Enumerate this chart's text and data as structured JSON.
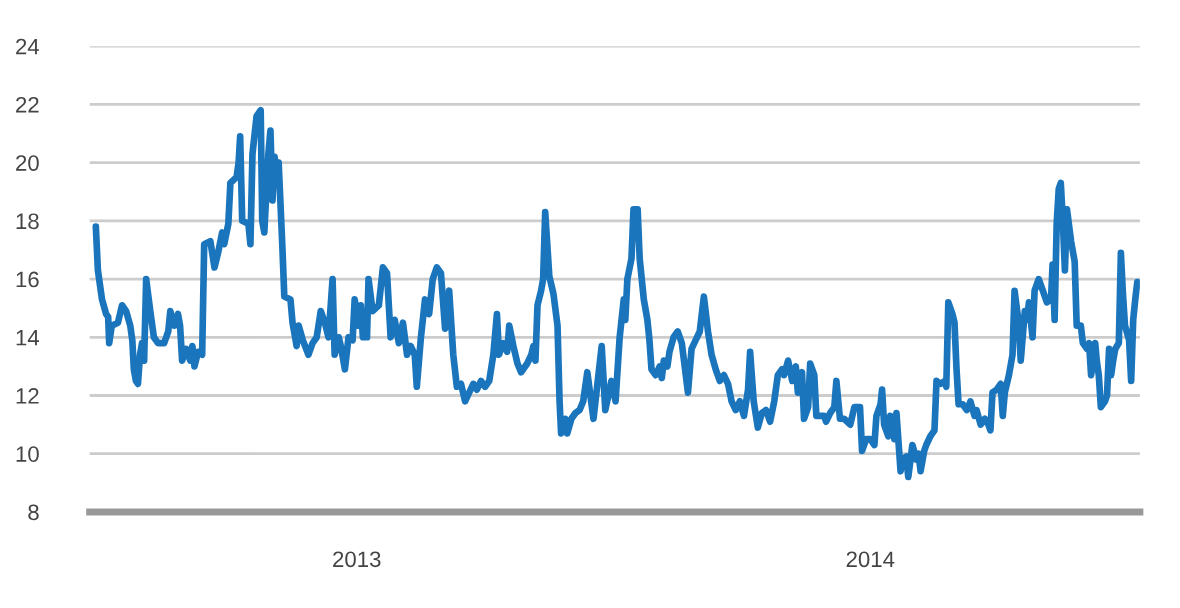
{
  "chart_data": {
    "type": "line",
    "xlim": [
      2012.98,
      2015.025
    ],
    "ylim": [
      8,
      24
    ],
    "yticks": [
      8,
      10,
      12,
      14,
      16,
      18,
      20,
      22,
      24
    ],
    "xticks": [
      {
        "value": 2013.5,
        "label": "2013"
      },
      {
        "value": 2014.5,
        "label": "2014"
      }
    ],
    "grid": "y",
    "marker": "none",
    "line_style": "solid",
    "series": [
      {
        "color": "#1a75bc",
        "x": [
          2012.992,
          2012.996,
          2013.004,
          2013.012,
          2013.016,
          2013.018,
          2013.023,
          2013.035,
          2013.043,
          2013.051,
          2013.059,
          2013.063,
          2013.066,
          2013.07,
          2013.074,
          2013.078,
          2013.082,
          2013.086,
          2013.09,
          2013.098,
          2013.105,
          2013.113,
          2013.125,
          2013.133,
          2013.137,
          2013.145,
          2013.152,
          2013.156,
          2013.16,
          2013.168,
          2013.176,
          2013.18,
          2013.184,
          2013.191,
          2013.199,
          2013.203,
          2013.215,
          2013.223,
          2013.23,
          2013.238,
          2013.242,
          2013.25,
          2013.254,
          2013.266,
          2013.27,
          2013.273,
          2013.277,
          2013.289,
          2013.293,
          2013.297,
          2013.305,
          2013.313,
          2013.316,
          2013.32,
          2013.328,
          2013.332,
          2013.336,
          2013.34,
          2013.344,
          2013.348,
          2013.355,
          2013.359,
          2013.371,
          2013.375,
          2013.383,
          2013.387,
          2013.395,
          2013.406,
          2013.414,
          2013.422,
          2013.43,
          2013.438,
          2013.445,
          2013.453,
          2013.457,
          2013.465,
          2013.469,
          2013.477,
          2013.484,
          2013.492,
          2013.496,
          2013.504,
          2013.508,
          2013.512,
          2013.52,
          2013.523,
          2013.531,
          2013.543,
          2013.551,
          2013.559,
          2013.566,
          2013.574,
          2013.582,
          2013.59,
          2013.598,
          2013.605,
          2013.613,
          2013.617,
          2013.625,
          2013.633,
          2013.641,
          2013.648,
          2013.656,
          2013.664,
          2013.672,
          2013.68,
          2013.688,
          2013.695,
          2013.703,
          2013.711,
          2013.719,
          2013.727,
          2013.734,
          2013.742,
          2013.75,
          2013.758,
          2013.766,
          2013.773,
          2013.777,
          2013.785,
          2013.793,
          2013.797,
          2013.805,
          2013.813,
          2013.82,
          2013.832,
          2013.84,
          2013.844,
          2013.848,
          2013.852,
          2013.859,
          2013.863,
          2013.867,
          2013.875,
          2013.883,
          2013.891,
          2013.895,
          2013.898,
          2013.906,
          2013.91,
          2013.918,
          2013.926,
          2013.934,
          2013.941,
          2013.949,
          2013.961,
          2013.977,
          2013.984,
          2013.996,
          2014.004,
          2014.012,
          2014.02,
          2014.023,
          2014.027,
          2014.035,
          2014.039,
          2014.047,
          2014.051,
          2014.059,
          2014.066,
          2014.07,
          2014.074,
          2014.082,
          2014.09,
          2014.094,
          2014.098,
          2014.105,
          2014.109,
          2014.117,
          2014.125,
          2014.133,
          2014.145,
          2014.152,
          2014.16,
          2014.168,
          2014.176,
          2014.184,
          2014.191,
          2014.199,
          2014.207,
          2014.215,
          2014.223,
          2014.23,
          2014.238,
          2014.246,
          2014.254,
          2014.262,
          2014.266,
          2014.273,
          2014.281,
          2014.289,
          2014.297,
          2014.305,
          2014.313,
          2014.32,
          2014.328,
          2014.332,
          2014.34,
          2014.348,
          2014.355,
          2014.359,
          2014.367,
          2014.371,
          2014.379,
          2014.383,
          2014.391,
          2014.395,
          2014.402,
          2014.41,
          2014.414,
          2014.422,
          2014.43,
          2014.434,
          2014.441,
          2014.449,
          2014.461,
          2014.469,
          2014.48,
          2014.484,
          2014.492,
          2014.5,
          2014.508,
          2014.512,
          2014.52,
          2014.523,
          2014.527,
          2014.535,
          2014.539,
          2014.547,
          2014.551,
          2014.559,
          2014.563,
          2014.57,
          2014.574,
          2014.582,
          2014.59,
          2014.594,
          2014.598,
          2014.605,
          2014.609,
          2014.617,
          2014.625,
          2014.629,
          2014.637,
          2014.645,
          2014.648,
          2014.652,
          2014.66,
          2014.664,
          2014.668,
          2014.672,
          2014.68,
          2014.688,
          2014.691,
          2014.695,
          2014.703,
          2014.707,
          2014.715,
          2014.723,
          2014.73,
          2014.734,
          2014.738,
          2014.746,
          2014.754,
          2014.758,
          2014.762,
          2014.77,
          2014.777,
          2014.781,
          2014.789,
          2014.793,
          2014.801,
          2014.805,
          2014.809,
          2014.816,
          2014.82,
          2014.828,
          2014.836,
          2014.844,
          2014.852,
          2014.855,
          2014.859,
          2014.863,
          2014.867,
          2014.871,
          2014.875,
          2014.879,
          2014.883,
          2014.891,
          2014.898,
          2014.902,
          2014.91,
          2014.914,
          2014.922,
          2014.926,
          2014.93,
          2014.934,
          2014.938,
          2014.941,
          2014.945,
          2014.949,
          2014.957,
          2014.961,
          2014.965,
          2014.969,
          2014.973,
          2014.977,
          2014.984,
          2014.988,
          2014.992,
          2014.996,
          2015.004,
          2015.008,
          2015.012,
          2015.016,
          2015.02
        ],
        "values": [
          17.8,
          16.3,
          15.3,
          14.8,
          14.7,
          13.8,
          14.4,
          14.5,
          15.1,
          14.9,
          14.4,
          13.9,
          12.9,
          12.5,
          12.4,
          13.4,
          13.8,
          13.2,
          16.0,
          14.9,
          14.0,
          13.8,
          13.8,
          14.2,
          14.9,
          14.4,
          14.8,
          14.4,
          13.2,
          13.6,
          13.2,
          13.7,
          13.0,
          13.5,
          13.4,
          17.2,
          17.3,
          16.4,
          16.9,
          17.6,
          17.2,
          17.9,
          19.3,
          19.5,
          20.0,
          20.9,
          18.0,
          17.9,
          17.2,
          20.3,
          21.6,
          21.8,
          18.0,
          17.6,
          20.3,
          21.1,
          18.7,
          20.2,
          19.5,
          20.0,
          17.2,
          15.4,
          15.3,
          14.5,
          13.7,
          14.4,
          13.9,
          13.4,
          13.8,
          14.0,
          14.9,
          14.5,
          14.0,
          16.0,
          13.4,
          14.0,
          13.7,
          12.9,
          14.0,
          13.9,
          15.3,
          14.4,
          15.1,
          14.0,
          14.0,
          16.0,
          14.9,
          15.1,
          16.4,
          16.2,
          14.0,
          14.6,
          13.8,
          14.5,
          13.4,
          13.7,
          13.4,
          12.3,
          14.0,
          15.3,
          14.8,
          16.0,
          16.4,
          16.2,
          14.3,
          15.6,
          13.4,
          12.3,
          12.4,
          11.8,
          12.1,
          12.4,
          12.2,
          12.5,
          12.3,
          12.5,
          13.4,
          14.8,
          13.4,
          13.8,
          13.5,
          14.4,
          13.7,
          13.1,
          12.8,
          13.1,
          13.4,
          13.7,
          13.2,
          15.1,
          15.6,
          16.0,
          18.3,
          16.1,
          15.5,
          14.4,
          11.8,
          10.7,
          11.2,
          10.7,
          11.2,
          11.4,
          11.5,
          11.8,
          12.8,
          11.2,
          13.7,
          11.5,
          12.5,
          11.8,
          14.0,
          15.3,
          14.6,
          16.0,
          16.7,
          18.4,
          18.4,
          16.7,
          15.3,
          14.6,
          13.9,
          12.9,
          12.7,
          13.0,
          12.6,
          13.2,
          13.0,
          13.5,
          14.0,
          14.2,
          13.8,
          12.1,
          13.6,
          13.9,
          14.2,
          15.4,
          14.2,
          13.4,
          12.9,
          12.5,
          12.7,
          12.4,
          11.8,
          11.5,
          11.8,
          11.3,
          12.2,
          13.5,
          11.8,
          10.9,
          11.4,
          11.5,
          11.1,
          11.8,
          12.7,
          12.9,
          12.7,
          13.2,
          12.5,
          13.0,
          12.1,
          12.8,
          11.2,
          11.6,
          13.1,
          12.7,
          11.3,
          11.3,
          11.3,
          11.1,
          11.4,
          11.6,
          12.5,
          11.2,
          11.2,
          11.0,
          11.6,
          11.6,
          10.1,
          10.5,
          10.5,
          10.3,
          11.3,
          11.7,
          12.2,
          11.0,
          10.6,
          11.3,
          10.5,
          11.4,
          9.4,
          9.8,
          9.9,
          9.2,
          10.3,
          9.8,
          10.0,
          9.4,
          10.1,
          10.3,
          10.6,
          10.8,
          12.5,
          12.4,
          12.5,
          12.3,
          15.2,
          14.8,
          14.5,
          12.9,
          11.7,
          11.7,
          11.5,
          11.6,
          11.8,
          11.3,
          11.5,
          11.0,
          11.2,
          11.0,
          10.8,
          12.1,
          12.2,
          12.4,
          11.3,
          12.1,
          12.7,
          13.4,
          15.6,
          14.5,
          13.2,
          14.9,
          14.6,
          15.2,
          14.0,
          15.6,
          16.0,
          15.6,
          15.2,
          15.3,
          16.5,
          14.6,
          17.9,
          19.1,
          19.3,
          18.0,
          16.3,
          18.4,
          17.3,
          16.6,
          14.4,
          14.4,
          13.8,
          13.6,
          13.8,
          12.7,
          13.2,
          13.8,
          13.2,
          12.7,
          11.6,
          11.8,
          12.0,
          13.6,
          12.7,
          13.2,
          13.6,
          13.8,
          16.9,
          15.5,
          14.4,
          13.9,
          12.5,
          14.6,
          15.3,
          15.9
        ]
      }
    ]
  }
}
